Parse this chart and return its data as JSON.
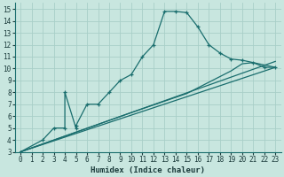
{
  "bg_color": "#c8e6df",
  "grid_color": "#a8cfc8",
  "line_color": "#1a6e6e",
  "xlabel": "Humidex (Indice chaleur)",
  "xlim": [
    -0.5,
    23.5
  ],
  "ylim": [
    3,
    15.5
  ],
  "xticks": [
    0,
    1,
    2,
    3,
    4,
    5,
    6,
    7,
    8,
    9,
    10,
    11,
    12,
    13,
    14,
    15,
    16,
    17,
    18,
    19,
    20,
    21,
    22,
    23
  ],
  "yticks": [
    3,
    4,
    5,
    6,
    7,
    8,
    9,
    10,
    11,
    12,
    13,
    14,
    15
  ],
  "zigzag_x": [
    0,
    2,
    3,
    4,
    4,
    5,
    5,
    6,
    7,
    8,
    9,
    10,
    11,
    12,
    13,
    14,
    15,
    16,
    17,
    18,
    19,
    20,
    21,
    22,
    23
  ],
  "zigzag_y": [
    3,
    4,
    5,
    5,
    8,
    5,
    5.2,
    7,
    7,
    8,
    9,
    9.5,
    11,
    12,
    14.8,
    14.8,
    14.7,
    13.5,
    12.0,
    11.3,
    10.8,
    10.7,
    10.5,
    10.1,
    10.1
  ],
  "line1_x": [
    0,
    23
  ],
  "line1_y": [
    3.0,
    10.1
  ],
  "line2_x": [
    0,
    23
  ],
  "line2_y": [
    3.0,
    10.6
  ],
  "line3_x": [
    0,
    10,
    15,
    19,
    20,
    21,
    22,
    23
  ],
  "line3_y": [
    3.0,
    6.3,
    7.9,
    9.8,
    10.4,
    10.5,
    10.3,
    10.1
  ]
}
